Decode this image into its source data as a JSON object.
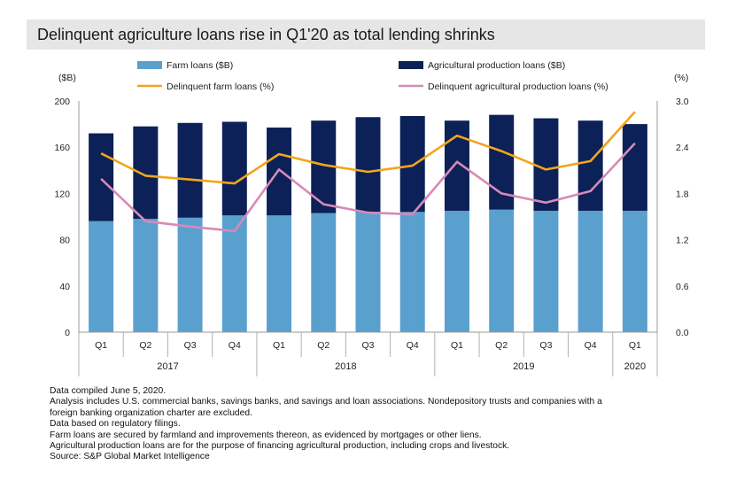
{
  "title": "Delinquent agriculture loans rise in Q1'20 as total lending shrinks",
  "chart_data": {
    "type": "bar",
    "stacked": true,
    "categories": [
      "Q1",
      "Q2",
      "Q3",
      "Q4",
      "Q1",
      "Q2",
      "Q3",
      "Q4",
      "Q1",
      "Q2",
      "Q3",
      "Q4",
      "Q1"
    ],
    "years": [
      {
        "label": "2017",
        "quarters": 4
      },
      {
        "label": "2018",
        "quarters": 4
      },
      {
        "label": "2019",
        "quarters": 4
      },
      {
        "label": "2020",
        "quarters": 1
      }
    ],
    "bar_series": [
      {
        "name": "Farm loans ($B)",
        "color": "#5aa0cf",
        "values": [
          96,
          98,
          99,
          101,
          101,
          103,
          104,
          104,
          105,
          106,
          105,
          105,
          105
        ]
      },
      {
        "name": "Agricultural production loans ($B)",
        "color": "#0c2157",
        "values": [
          76,
          80,
          82,
          81,
          76,
          80,
          82,
          83,
          78,
          82,
          80,
          78,
          75
        ]
      }
    ],
    "line_series": [
      {
        "name": "Delinquent farm loans (%)",
        "color": "#f2a51c",
        "values": [
          2.32,
          2.03,
          1.98,
          1.93,
          2.31,
          2.17,
          2.08,
          2.16,
          2.55,
          2.35,
          2.11,
          2.22,
          2.86
        ]
      },
      {
        "name": "Delinquent agricultural production loans (%)",
        "color": "#d68ab8",
        "values": [
          1.99,
          1.44,
          1.37,
          1.31,
          2.11,
          1.66,
          1.55,
          1.53,
          2.21,
          1.8,
          1.68,
          1.83,
          2.45
        ]
      }
    ],
    "left_axis": {
      "label": "($B)",
      "min": 0,
      "max": 200,
      "ticks": [
        "0",
        "40",
        "80",
        "120",
        "160",
        "200"
      ]
    },
    "right_axis": {
      "label": "(%)",
      "min": 0,
      "max": 3.0,
      "ticks": [
        "0.0",
        "0.6",
        "1.2",
        "1.8",
        "2.4",
        "3.0"
      ]
    },
    "legend": {
      "placement": "top",
      "items": [
        "Farm loans ($B)",
        "Agricultural production loans ($B)",
        "Delinquent farm loans (%)",
        "Delinquent agricultural production loans (%)"
      ]
    },
    "grid": false
  },
  "notes": [
    "Data compiled June 5, 2020.",
    "Analysis includes U.S. commercial banks, savings banks, and savings and loan associations. Nondepository trusts and companies with a",
    "foreign banking organization charter are excluded.",
    "Data based on regulatory filings.",
    "Farm loans are secured by farmland and improvements thereon, as evidenced by mortgages or other liens.",
    "Agricultural production loans are for the purpose of financing agricultural production, including crops and livestock.",
    "Source: S&P Global Market Intelligence"
  ]
}
